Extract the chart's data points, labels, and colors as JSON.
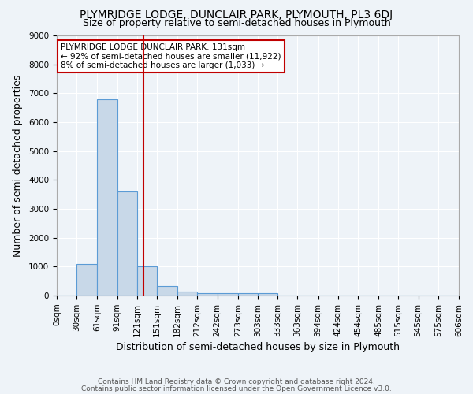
{
  "title": "PLYMRIDGE LODGE, DUNCLAIR PARK, PLYMOUTH, PL3 6DJ",
  "subtitle": "Size of property relative to semi-detached houses in Plymouth",
  "xlabel": "Distribution of semi-detached houses by size in Plymouth",
  "ylabel": "Number of semi-detached properties",
  "footnote1": "Contains HM Land Registry data © Crown copyright and database right 2024.",
  "footnote2": "Contains public sector information licensed under the Open Government Licence v3.0.",
  "bin_edges": [
    0,
    30,
    61,
    91,
    121,
    151,
    182,
    212,
    242,
    273,
    303,
    333,
    363,
    394,
    424,
    454,
    485,
    515,
    545,
    575,
    606
  ],
  "bin_labels": [
    "0sqm",
    "30sqm",
    "61sqm",
    "91sqm",
    "121sqm",
    "151sqm",
    "182sqm",
    "212sqm",
    "242sqm",
    "273sqm",
    "303sqm",
    "333sqm",
    "363sqm",
    "394sqm",
    "424sqm",
    "454sqm",
    "485sqm",
    "515sqm",
    "545sqm",
    "575sqm",
    "606sqm"
  ],
  "counts": [
    0,
    1100,
    6800,
    3600,
    1000,
    320,
    140,
    80,
    80,
    80,
    80,
    0,
    0,
    0,
    0,
    0,
    0,
    0,
    0,
    0
  ],
  "bar_color": "#c8d8e8",
  "bar_edge_color": "#5b9bd5",
  "property_size": 131,
  "vline_color": "#c00000",
  "annotation_line1": "PLYMRIDGE LODGE DUNCLAIR PARK: 131sqm",
  "annotation_line2": "← 92% of semi-detached houses are smaller (11,922)",
  "annotation_line3": "8% of semi-detached houses are larger (1,033) →",
  "annotation_box_color": "#ffffff",
  "annotation_box_edge": "#c00000",
  "ylim": [
    0,
    9000
  ],
  "yticks": [
    0,
    1000,
    2000,
    3000,
    4000,
    5000,
    6000,
    7000,
    8000,
    9000
  ],
  "bg_color": "#eef3f8",
  "grid_color": "#ffffff",
  "title_fontsize": 10,
  "subtitle_fontsize": 9,
  "axis_label_fontsize": 9,
  "tick_fontsize": 7.5,
  "annotation_fontsize": 7.5,
  "footnote_fontsize": 6.5,
  "footnote_color": "#555555"
}
